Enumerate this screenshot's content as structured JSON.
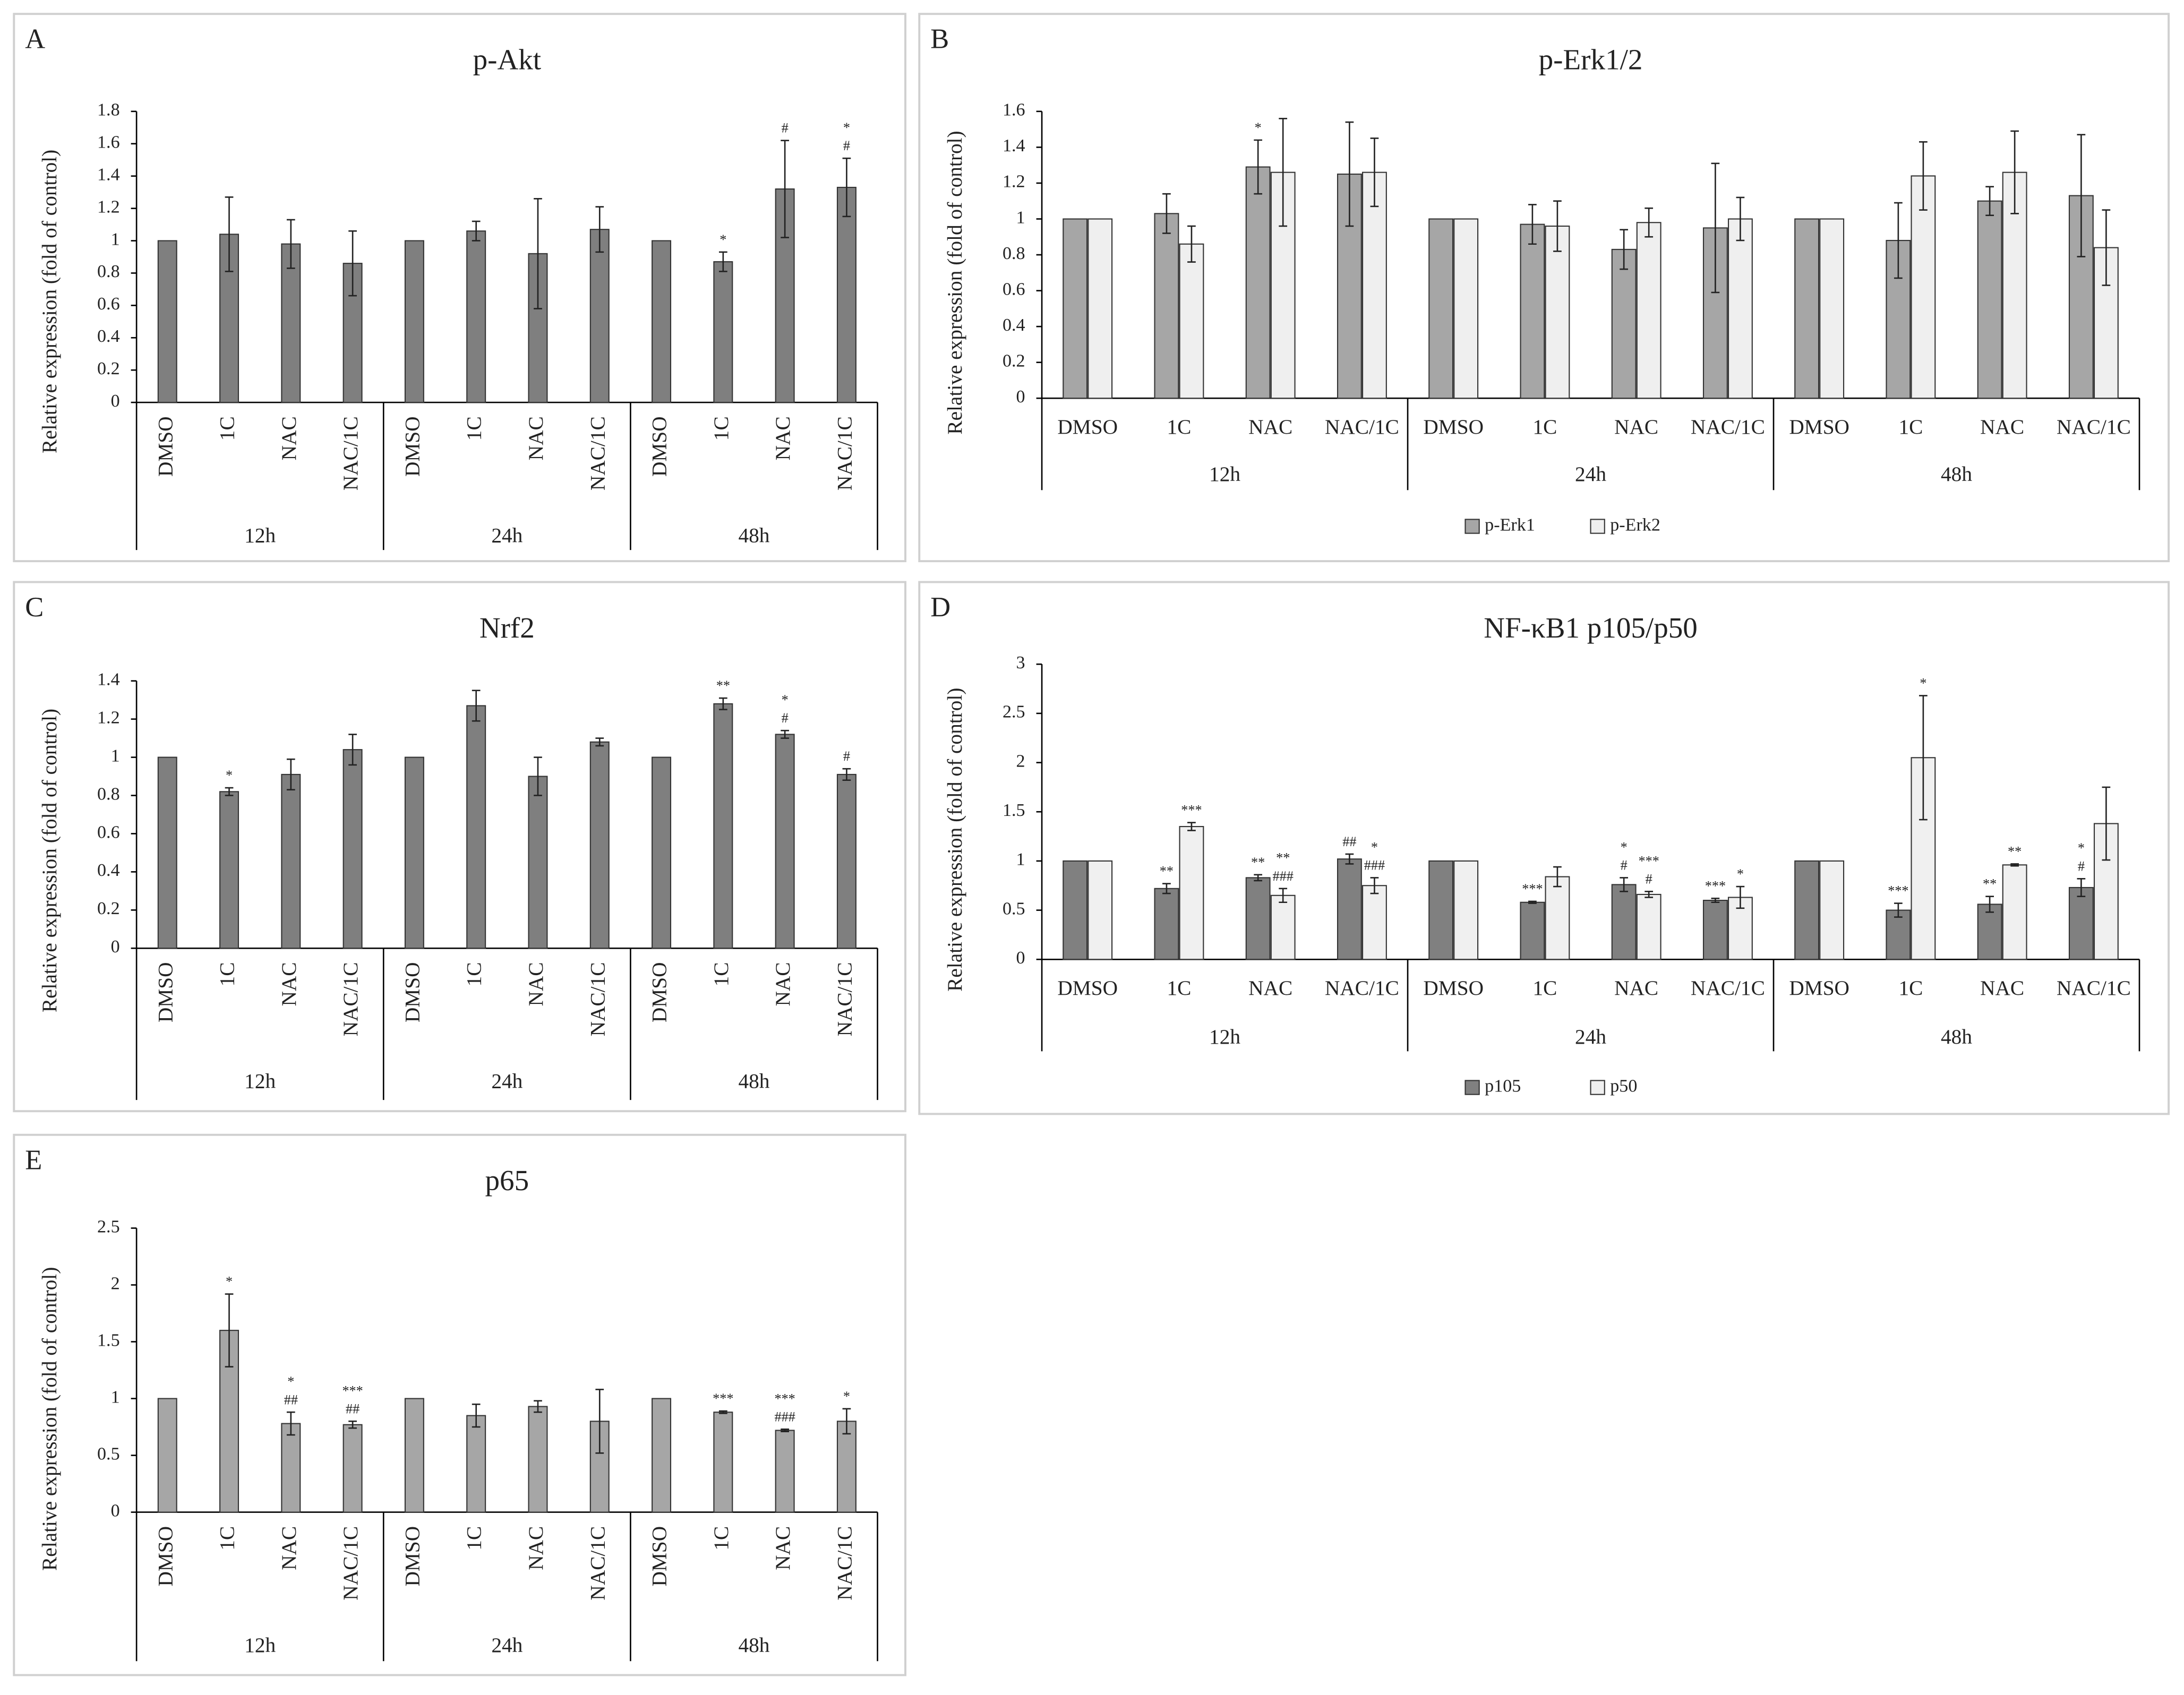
{
  "chart_data": [
    {
      "type": "bar",
      "panel": "A",
      "title": "p-Akt",
      "ylabel": "Relative expression (fold of control)",
      "categories": [
        "DMSO",
        "1C",
        "NAC",
        "NAC/1C",
        "DMSO",
        "1C",
        "NAC",
        "NAC/1C",
        "DMSO",
        "1C",
        "NAC",
        "NAC/1C"
      ],
      "groups": [
        "12h",
        "24h",
        "48h"
      ],
      "ylim": [
        0,
        1.8
      ],
      "yticks": [
        0,
        0.2,
        0.4,
        0.6,
        0.8,
        1,
        1.2,
        1.4,
        1.6,
        1.8
      ],
      "series": [
        {
          "color": "#7f7f7f",
          "values": [
            1,
            1.04,
            0.98,
            0.86,
            1,
            1.06,
            0.92,
            1.07,
            1,
            0.87,
            1.32,
            1.33
          ],
          "errors": [
            0,
            0.23,
            0.15,
            0.2,
            0,
            0.06,
            0.34,
            0.14,
            0,
            0.06,
            0.3,
            0.18
          ],
          "annotations": [
            [],
            [],
            [],
            [],
            [],
            [],
            [],
            [],
            [],
            [
              "*"
            ],
            [
              "#"
            ],
            [
              "*",
              "#"
            ]
          ]
        }
      ]
    },
    {
      "type": "bar",
      "panel": "B",
      "title": "p-Erk1/2",
      "ylabel": "Relative expression (fold of control)",
      "categories": [
        "DMSO",
        "1C",
        "NAC",
        "NAC/1C",
        "DMSO",
        "1C",
        "NAC",
        "NAC/1C",
        "DMSO",
        "1C",
        "NAC",
        "NAC/1C"
      ],
      "groups": [
        "12h",
        "24h",
        "48h"
      ],
      "ylim": [
        0,
        1.6
      ],
      "yticks": [
        0,
        0.2,
        0.4,
        0.6,
        0.8,
        1,
        1.2,
        1.4,
        1.6
      ],
      "series": [
        {
          "name": "p-Erk1",
          "color": "#a6a6a6",
          "values": [
            1,
            1.03,
            1.29,
            1.25,
            1,
            0.97,
            0.83,
            0.95,
            1,
            0.88,
            1.1,
            1.13
          ],
          "errors": [
            0,
            0.11,
            0.15,
            0.29,
            0,
            0.11,
            0.11,
            0.36,
            0,
            0.21,
            0.08,
            0.34
          ],
          "annotations": [
            [],
            [],
            [
              "*"
            ],
            [],
            [],
            [],
            [],
            [],
            [],
            [],
            [],
            []
          ]
        },
        {
          "name": "p-Erk2",
          "color": "#efefef",
          "values": [
            1,
            0.86,
            1.26,
            1.26,
            1,
            0.96,
            0.98,
            1,
            1,
            1.24,
            1.26,
            0.84
          ],
          "errors": [
            0,
            0.1,
            0.3,
            0.19,
            0,
            0.14,
            0.08,
            0.12,
            0,
            0.19,
            0.23,
            0.21
          ],
          "annotations": [
            [],
            [],
            [],
            [],
            [],
            [],
            [],
            [],
            [],
            [],
            [],
            []
          ]
        }
      ]
    },
    {
      "type": "bar",
      "panel": "C",
      "title": "Nrf2",
      "ylabel": "Relative expression (fold of control)",
      "categories": [
        "DMSO",
        "1C",
        "NAC",
        "NAC/1C",
        "DMSO",
        "1C",
        "NAC",
        "NAC/1C",
        "DMSO",
        "1C",
        "NAC",
        "NAC/1C"
      ],
      "groups": [
        "12h",
        "24h",
        "48h"
      ],
      "ylim": [
        0,
        1.4
      ],
      "yticks": [
        0,
        0.2,
        0.4,
        0.6,
        0.8,
        1,
        1.2,
        1.4
      ],
      "series": [
        {
          "color": "#7f7f7f",
          "values": [
            1,
            0.82,
            0.91,
            1.04,
            1,
            1.27,
            0.9,
            1.08,
            1,
            1.28,
            1.12,
            0.91
          ],
          "errors": [
            0,
            0.02,
            0.08,
            0.08,
            0,
            0.08,
            0.1,
            0.02,
            0,
            0.03,
            0.02,
            0.03
          ],
          "annotations": [
            [],
            [
              "*"
            ],
            [],
            [],
            [],
            [],
            [],
            [],
            [],
            [
              "**"
            ],
            [
              "*",
              "#"
            ],
            [
              "#"
            ]
          ]
        }
      ]
    },
    {
      "type": "bar",
      "panel": "D",
      "title": "NF-κB1 p105/p50",
      "ylabel": "Relative expression (fold of control)",
      "categories": [
        "DMSO",
        "1C",
        "NAC",
        "NAC/1C",
        "DMSO",
        "1C",
        "NAC",
        "NAC/1C",
        "DMSO",
        "1C",
        "NAC",
        "NAC/1C"
      ],
      "groups": [
        "12h",
        "24h",
        "48h"
      ],
      "ylim": [
        0,
        3
      ],
      "yticks": [
        0,
        0.5,
        1,
        1.5,
        2,
        2.5,
        3
      ],
      "series": [
        {
          "name": "p105",
          "color": "#808080",
          "values": [
            1,
            0.72,
            0.83,
            1.02,
            1,
            0.58,
            0.76,
            0.6,
            1,
            0.5,
            0.56,
            0.73
          ],
          "errors": [
            0,
            0.05,
            0.03,
            0.05,
            0,
            0.01,
            0.07,
            0.02,
            0,
            0.07,
            0.08,
            0.09
          ],
          "annotations": [
            [],
            [
              "**"
            ],
            [
              "**"
            ],
            [
              "##"
            ],
            [],
            [
              "***"
            ],
            [
              "*",
              "#"
            ],
            [
              "***"
            ],
            [],
            [
              "***"
            ],
            [
              "**"
            ],
            [
              "*",
              "#"
            ]
          ]
        },
        {
          "name": "p50",
          "color": "#f0f0f0",
          "values": [
            1,
            1.35,
            0.65,
            0.75,
            1,
            0.84,
            0.66,
            0.63,
            1,
            2.05,
            0.96,
            1.38
          ],
          "errors": [
            0,
            0.04,
            0.07,
            0.08,
            0,
            0.1,
            0.03,
            0.11,
            0,
            0.63,
            0.01,
            0.37
          ],
          "annotations": [
            [],
            [
              "***"
            ],
            [
              "**",
              "###"
            ],
            [
              "*",
              "###"
            ],
            [],
            [],
            [
              "***",
              "#"
            ],
            [
              "*"
            ],
            [],
            [
              "*"
            ],
            [
              "**"
            ],
            []
          ]
        }
      ]
    },
    {
      "type": "bar",
      "panel": "E",
      "title": "p65",
      "ylabel": "Relative expression (fold of control)",
      "categories": [
        "DMSO",
        "1C",
        "NAC",
        "NAC/1C",
        "DMSO",
        "1C",
        "NAC",
        "NAC/1C",
        "DMSO",
        "1C",
        "NAC",
        "NAC/1C"
      ],
      "groups": [
        "12h",
        "24h",
        "48h"
      ],
      "ylim": [
        0,
        2.5
      ],
      "yticks": [
        0,
        0.5,
        1,
        1.5,
        2,
        2.5
      ],
      "series": [
        {
          "color": "#a6a6a6",
          "values": [
            1,
            1.6,
            0.78,
            0.77,
            1,
            0.85,
            0.93,
            0.8,
            1,
            0.88,
            0.72,
            0.8
          ],
          "errors": [
            0,
            0.32,
            0.1,
            0.03,
            0,
            0.1,
            0.05,
            0.28,
            0,
            0.01,
            0.01,
            0.11
          ],
          "annotations": [
            [],
            [
              "*"
            ],
            [
              "*",
              "##"
            ],
            [
              "***",
              "##"
            ],
            [],
            [],
            [],
            [],
            [],
            [
              "***"
            ],
            [
              "***",
              "###"
            ],
            [
              "*"
            ]
          ]
        }
      ]
    }
  ]
}
